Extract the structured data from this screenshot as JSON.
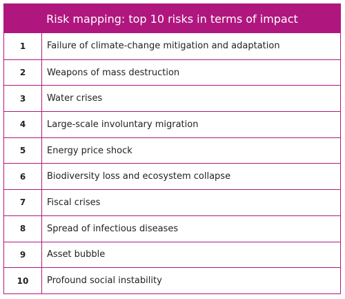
{
  "table": {
    "title": "Risk mapping: top 10 risks in terms of impact",
    "rows": [
      {
        "rank": "1",
        "risk": "Failure of climate-change mitigation and adaptation"
      },
      {
        "rank": "2",
        "risk": "Weapons of mass destruction"
      },
      {
        "rank": "3",
        "risk": "Water crises"
      },
      {
        "rank": "4",
        "risk": "Large-scale involuntary migration"
      },
      {
        "rank": "5",
        "risk": "Energy price shock"
      },
      {
        "rank": "6",
        "risk": "Biodiversity loss and ecosystem collapse"
      },
      {
        "rank": "7",
        "risk": "Fiscal crises"
      },
      {
        "rank": "8",
        "risk": "Spread of infectious diseases"
      },
      {
        "rank": "9",
        "risk": "Asset bubble"
      },
      {
        "rank": "10",
        "risk": "Profound social instability"
      }
    ]
  },
  "colors": {
    "accent": "#b0177e",
    "header_text": "#ffffff",
    "body_text": "#222222"
  }
}
